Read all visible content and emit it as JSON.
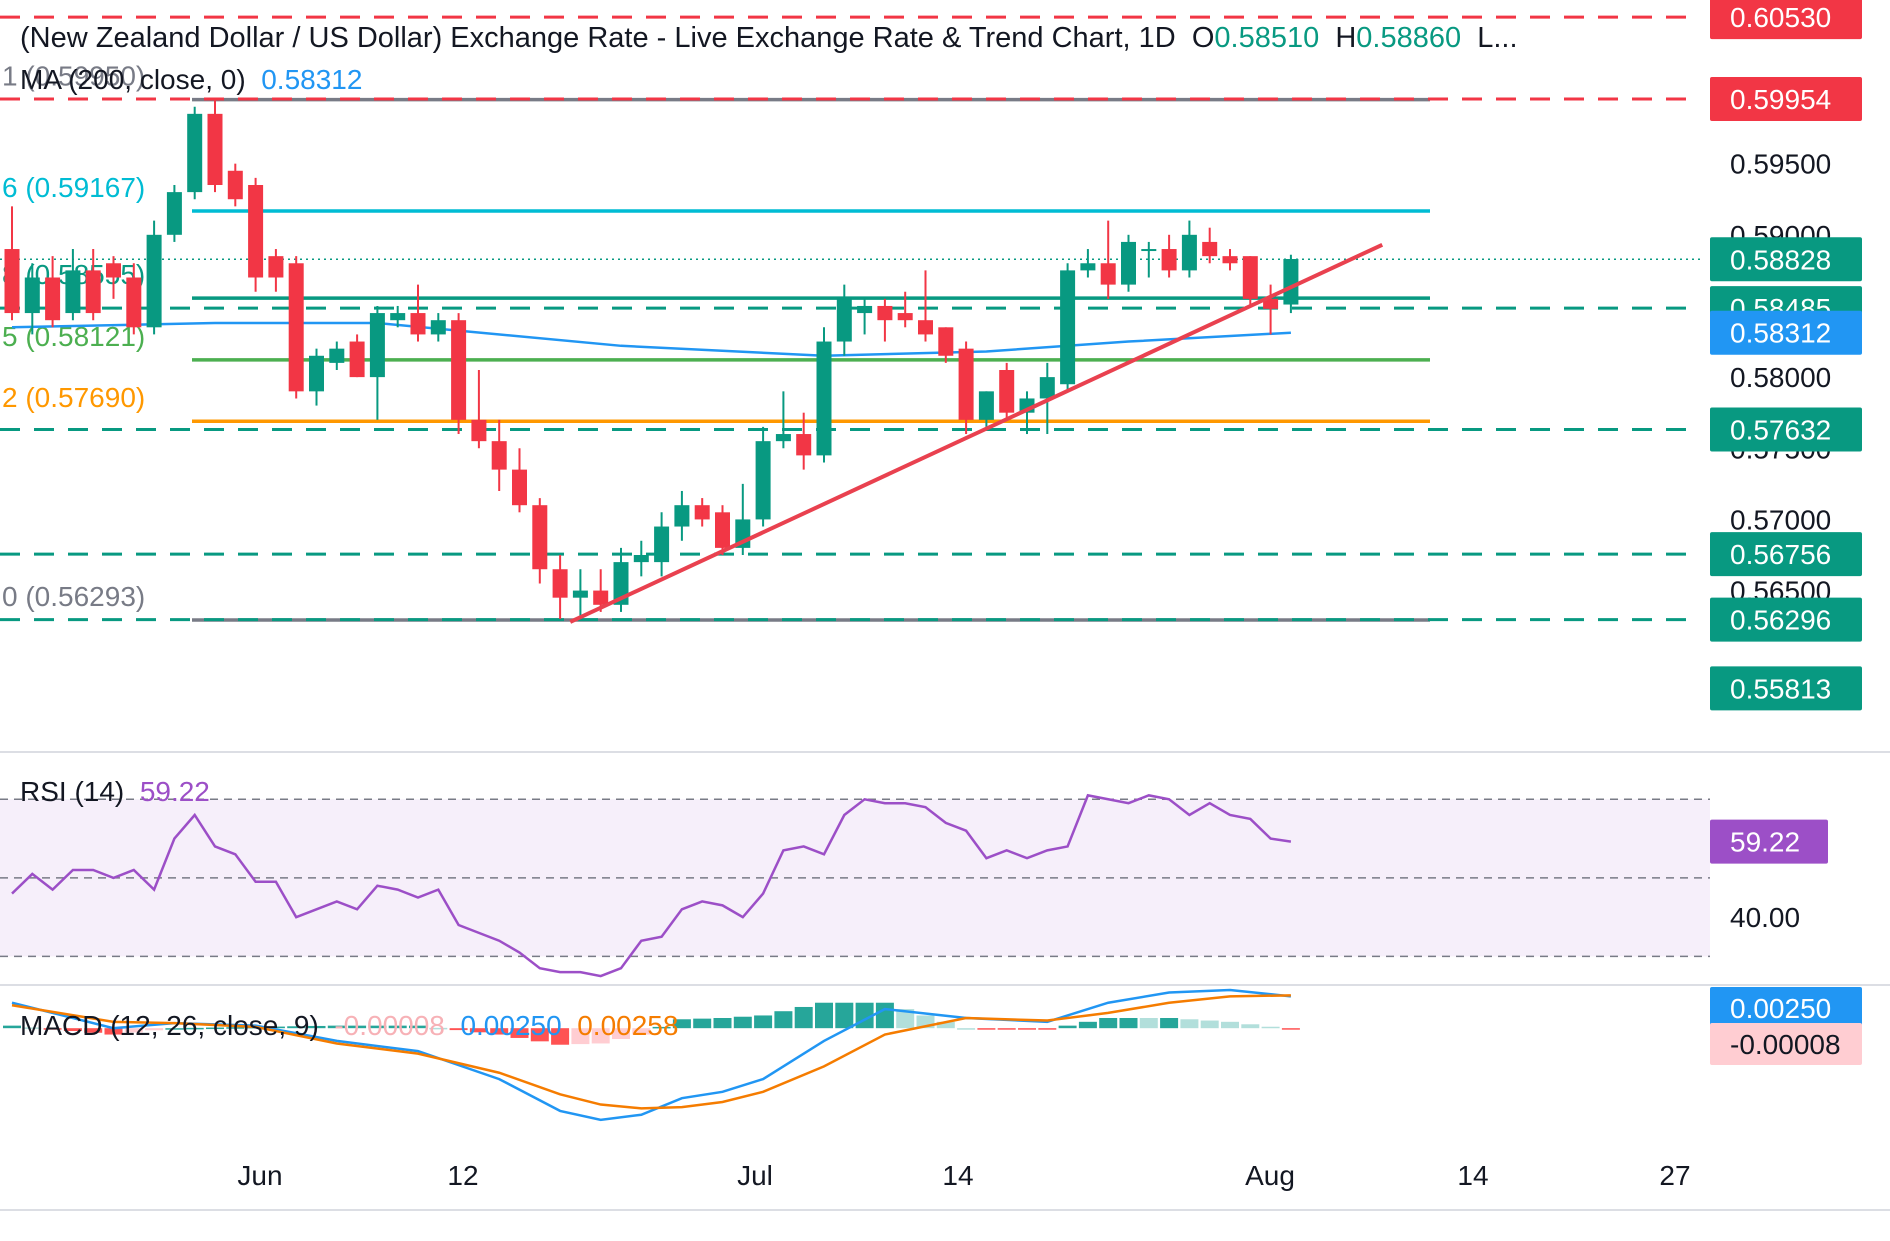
{
  "header": {
    "title": "(New Zealand Dollar / US Dollar) Exchange Rate - Live Exchange Rate & Trend Chart, 1D",
    "open_label": "O",
    "open_value": "0.58510",
    "high_label": "H",
    "high_value": "0.58860",
    "more": "L..."
  },
  "ma_legend": {
    "label": "MA (200, close, 0)",
    "value": "0.58312"
  },
  "rsi_legend": {
    "label": "RSI (14)",
    "value": "59.22"
  },
  "macd_legend": {
    "label": "MACD (12, 26, close, 9)",
    "hist": "-0.00008",
    "macd": "0.00250",
    "signal": "0.00258"
  },
  "colors": {
    "up": "#089981",
    "down": "#f23645",
    "ma": "#2196f3",
    "trend": "#e9414f",
    "fib_top": "#787b86",
    "fib_786": "#00bcd4",
    "fib_618": "#089981",
    "fib_5": "#4caf50",
    "fib_382": "#ff9800",
    "rsi": "#9c4fc7",
    "macd": "#2196f3",
    "signal": "#f57c00"
  },
  "chart_data": {
    "type": "candlestick",
    "price_axis": {
      "ylim": [
        0.5545,
        0.6065
      ],
      "ticks": [
        "0.59500",
        "0.59000",
        "0.58000",
        "0.57500",
        "0.57000",
        "0.56500"
      ]
    },
    "time_axis": {
      "labels": [
        {
          "text": "Jun",
          "index": 8
        },
        {
          "text": "12",
          "index": 15
        },
        {
          "text": "Jul",
          "index": 25
        },
        {
          "text": "14",
          "index": 32
        },
        {
          "text": "Aug",
          "index": 43
        },
        {
          "text": "14",
          "index": 50
        },
        {
          "text": "27",
          "index": 57
        }
      ]
    },
    "candles": [
      {
        "o": 0.589,
        "h": 0.592,
        "l": 0.584,
        "c": 0.5845
      },
      {
        "o": 0.5845,
        "h": 0.588,
        "l": 0.583,
        "c": 0.587
      },
      {
        "o": 0.587,
        "h": 0.5885,
        "l": 0.5835,
        "c": 0.584
      },
      {
        "o": 0.5845,
        "h": 0.589,
        "l": 0.584,
        "c": 0.5875
      },
      {
        "o": 0.5875,
        "h": 0.589,
        "l": 0.584,
        "c": 0.5845
      },
      {
        "o": 0.588,
        "h": 0.5885,
        "l": 0.5855,
        "c": 0.587
      },
      {
        "o": 0.587,
        "h": 0.588,
        "l": 0.583,
        "c": 0.5835
      },
      {
        "o": 0.5835,
        "h": 0.591,
        "l": 0.583,
        "c": 0.59
      },
      {
        "o": 0.59,
        "h": 0.5935,
        "l": 0.5895,
        "c": 0.593
      },
      {
        "o": 0.593,
        "h": 0.599,
        "l": 0.5925,
        "c": 0.5985
      },
      {
        "o": 0.5985,
        "h": 0.5995,
        "l": 0.593,
        "c": 0.5935
      },
      {
        "o": 0.5945,
        "h": 0.595,
        "l": 0.592,
        "c": 0.5925
      },
      {
        "o": 0.5935,
        "h": 0.594,
        "l": 0.586,
        "c": 0.587
      },
      {
        "o": 0.5885,
        "h": 0.589,
        "l": 0.586,
        "c": 0.587
      },
      {
        "o": 0.588,
        "h": 0.5885,
        "l": 0.5785,
        "c": 0.579
      },
      {
        "o": 0.579,
        "h": 0.582,
        "l": 0.578,
        "c": 0.5815
      },
      {
        "o": 0.581,
        "h": 0.5825,
        "l": 0.5805,
        "c": 0.582
      },
      {
        "o": 0.5825,
        "h": 0.583,
        "l": 0.58,
        "c": 0.58
      },
      {
        "o": 0.58,
        "h": 0.585,
        "l": 0.577,
        "c": 0.5845
      },
      {
        "o": 0.584,
        "h": 0.585,
        "l": 0.5835,
        "c": 0.5845
      },
      {
        "o": 0.5845,
        "h": 0.5865,
        "l": 0.5825,
        "c": 0.583
      },
      {
        "o": 0.583,
        "h": 0.5845,
        "l": 0.5825,
        "c": 0.584
      },
      {
        "o": 0.584,
        "h": 0.5845,
        "l": 0.576,
        "c": 0.577
      },
      {
        "o": 0.577,
        "h": 0.5805,
        "l": 0.575,
        "c": 0.5755
      },
      {
        "o": 0.5755,
        "h": 0.577,
        "l": 0.572,
        "c": 0.5735
      },
      {
        "o": 0.5735,
        "h": 0.575,
        "l": 0.5705,
        "c": 0.571
      },
      {
        "o": 0.571,
        "h": 0.5715,
        "l": 0.5655,
        "c": 0.5665
      },
      {
        "o": 0.5665,
        "h": 0.5675,
        "l": 0.563,
        "c": 0.5645
      },
      {
        "o": 0.5645,
        "h": 0.5665,
        "l": 0.563,
        "c": 0.565
      },
      {
        "o": 0.565,
        "h": 0.5665,
        "l": 0.5635,
        "c": 0.564
      },
      {
        "o": 0.564,
        "h": 0.568,
        "l": 0.5635,
        "c": 0.567
      },
      {
        "o": 0.567,
        "h": 0.5685,
        "l": 0.566,
        "c": 0.5675
      },
      {
        "o": 0.567,
        "h": 0.5705,
        "l": 0.566,
        "c": 0.5695
      },
      {
        "o": 0.5695,
        "h": 0.572,
        "l": 0.5685,
        "c": 0.571
      },
      {
        "o": 0.571,
        "h": 0.5715,
        "l": 0.5695,
        "c": 0.57
      },
      {
        "o": 0.5705,
        "h": 0.571,
        "l": 0.5675,
        "c": 0.568
      },
      {
        "o": 0.568,
        "h": 0.5725,
        "l": 0.5675,
        "c": 0.57
      },
      {
        "o": 0.57,
        "h": 0.5765,
        "l": 0.5695,
        "c": 0.5755
      },
      {
        "o": 0.5755,
        "h": 0.579,
        "l": 0.575,
        "c": 0.576
      },
      {
        "o": 0.576,
        "h": 0.5775,
        "l": 0.5735,
        "c": 0.5745
      },
      {
        "o": 0.5745,
        "h": 0.5835,
        "l": 0.574,
        "c": 0.5825
      },
      {
        "o": 0.5825,
        "h": 0.5865,
        "l": 0.5815,
        "c": 0.5855
      },
      {
        "o": 0.5845,
        "h": 0.5855,
        "l": 0.583,
        "c": 0.585
      },
      {
        "o": 0.585,
        "h": 0.5855,
        "l": 0.5825,
        "c": 0.584
      },
      {
        "o": 0.5845,
        "h": 0.586,
        "l": 0.5835,
        "c": 0.584
      },
      {
        "o": 0.584,
        "h": 0.5875,
        "l": 0.5825,
        "c": 0.583
      },
      {
        "o": 0.5835,
        "h": 0.5835,
        "l": 0.581,
        "c": 0.5815
      },
      {
        "o": 0.582,
        "h": 0.5825,
        "l": 0.576,
        "c": 0.577
      },
      {
        "o": 0.577,
        "h": 0.579,
        "l": 0.5765,
        "c": 0.579
      },
      {
        "o": 0.5805,
        "h": 0.581,
        "l": 0.577,
        "c": 0.5775
      },
      {
        "o": 0.5775,
        "h": 0.579,
        "l": 0.576,
        "c": 0.5785
      },
      {
        "o": 0.5785,
        "h": 0.581,
        "l": 0.576,
        "c": 0.58
      },
      {
        "o": 0.5795,
        "h": 0.588,
        "l": 0.579,
        "c": 0.5875
      },
      {
        "o": 0.5875,
        "h": 0.589,
        "l": 0.587,
        "c": 0.588
      },
      {
        "o": 0.588,
        "h": 0.591,
        "l": 0.5855,
        "c": 0.5865
      },
      {
        "o": 0.5865,
        "h": 0.59,
        "l": 0.586,
        "c": 0.5895
      },
      {
        "o": 0.589,
        "h": 0.5895,
        "l": 0.587,
        "c": 0.589
      },
      {
        "o": 0.589,
        "h": 0.59,
        "l": 0.587,
        "c": 0.5875
      },
      {
        "o": 0.5875,
        "h": 0.591,
        "l": 0.587,
        "c": 0.59
      },
      {
        "o": 0.5895,
        "h": 0.5905,
        "l": 0.588,
        "c": 0.5885
      },
      {
        "o": 0.5885,
        "h": 0.589,
        "l": 0.5875,
        "c": 0.588
      },
      {
        "o": 0.5885,
        "h": 0.5885,
        "l": 0.585,
        "c": 0.5855
      },
      {
        "o": 0.5855,
        "h": 0.5865,
        "l": 0.583,
        "c": 0.5848
      },
      {
        "o": 0.5851,
        "h": 0.5886,
        "l": 0.5845,
        "c": 0.5883
      }
    ],
    "ma200": [
      {
        "i": 0,
        "v": 0.5835
      },
      {
        "i": 10,
        "v": 0.5838
      },
      {
        "i": 18,
        "v": 0.5838
      },
      {
        "i": 30,
        "v": 0.5822
      },
      {
        "i": 40,
        "v": 0.5815
      },
      {
        "i": 48,
        "v": 0.5818
      },
      {
        "i": 55,
        "v": 0.5825
      },
      {
        "i": 63,
        "v": 0.58312
      }
    ],
    "fib_levels": [
      {
        "label": "1 (0.59950)",
        "value": 0.5995,
        "color": "#787b86"
      },
      {
        "label": "6 (0.59167)",
        "value": 0.59167,
        "color": "#00bcd4"
      },
      {
        "label": "8 (0.58555)",
        "value": 0.58555,
        "color": "#089981"
      },
      {
        "label": "5 (0.58121)",
        "value": 0.58121,
        "color": "#4caf50"
      },
      {
        "label": "2 (0.57690)",
        "value": 0.5769,
        "color": "#ff9800"
      },
      {
        "label": "0 (0.56293)",
        "value": 0.56293,
        "color": "#787b86"
      }
    ],
    "trendline": {
      "start": {
        "i": 27.5,
        "v": 0.5628
      },
      "end": {
        "i": 67.5,
        "v": 0.5893
      }
    },
    "dashed_levels": [
      {
        "value": 0.6053,
        "color": "#f23645"
      },
      {
        "value": 0.59954,
        "color": "#f23645"
      },
      {
        "value": 0.58485,
        "color": "#089981"
      },
      {
        "value": 0.57632,
        "color": "#089981"
      },
      {
        "value": 0.56756,
        "color": "#089981"
      },
      {
        "value": 0.56296,
        "color": "#089981"
      }
    ],
    "last_price": 0.58828,
    "price_labels": [
      {
        "text": "0.60530",
        "value": 0.6053,
        "color": "#f23645"
      },
      {
        "text": "0.59954",
        "value": 0.59954,
        "color": "#f23645"
      },
      {
        "text": "0.58828",
        "value": 0.58828,
        "color": "#089981"
      },
      {
        "text": "0.58485",
        "value": 0.58485,
        "color": "#089981"
      },
      {
        "text": "0.58312",
        "value": 0.58312,
        "color": "#2196f3"
      },
      {
        "text": "0.57632",
        "value": 0.57632,
        "color": "#089981"
      },
      {
        "text": "0.56756",
        "value": 0.56756,
        "color": "#089981"
      },
      {
        "text": "0.56296",
        "value": 0.56296,
        "color": "#089981"
      },
      {
        "text": "0.55813",
        "value": 0.55813,
        "color": "#089981"
      }
    ],
    "rsi": {
      "ylim": [
        24,
        80
      ],
      "upper": 70,
      "lower": 30,
      "tick": "40.00",
      "tick_value": 40,
      "current_label": "59.22",
      "points": [
        {
          "i": 0,
          "v": 46
        },
        {
          "i": 1,
          "v": 51
        },
        {
          "i": 2,
          "v": 47
        },
        {
          "i": 3,
          "v": 52
        },
        {
          "i": 4,
          "v": 52
        },
        {
          "i": 5,
          "v": 50
        },
        {
          "i": 6,
          "v": 52
        },
        {
          "i": 7,
          "v": 47
        },
        {
          "i": 8,
          "v": 60
        },
        {
          "i": 9,
          "v": 66
        },
        {
          "i": 10,
          "v": 58
        },
        {
          "i": 11,
          "v": 56
        },
        {
          "i": 12,
          "v": 49
        },
        {
          "i": 13,
          "v": 49
        },
        {
          "i": 14,
          "v": 40
        },
        {
          "i": 15,
          "v": 42
        },
        {
          "i": 16,
          "v": 44
        },
        {
          "i": 17,
          "v": 42
        },
        {
          "i": 18,
          "v": 48
        },
        {
          "i": 19,
          "v": 47
        },
        {
          "i": 20,
          "v": 45
        },
        {
          "i": 21,
          "v": 47
        },
        {
          "i": 22,
          "v": 38
        },
        {
          "i": 23,
          "v": 36
        },
        {
          "i": 24,
          "v": 34
        },
        {
          "i": 25,
          "v": 31
        },
        {
          "i": 26,
          "v": 27
        },
        {
          "i": 27,
          "v": 26
        },
        {
          "i": 28,
          "v": 26
        },
        {
          "i": 29,
          "v": 25
        },
        {
          "i": 30,
          "v": 27
        },
        {
          "i": 31,
          "v": 34
        },
        {
          "i": 32,
          "v": 35
        },
        {
          "i": 33,
          "v": 42
        },
        {
          "i": 34,
          "v": 44
        },
        {
          "i": 35,
          "v": 43
        },
        {
          "i": 36,
          "v": 40
        },
        {
          "i": 37,
          "v": 46
        },
        {
          "i": 38,
          "v": 57
        },
        {
          "i": 39,
          "v": 58
        },
        {
          "i": 40,
          "v": 56
        },
        {
          "i": 41,
          "v": 66
        },
        {
          "i": 42,
          "v": 70
        },
        {
          "i": 43,
          "v": 69
        },
        {
          "i": 44,
          "v": 69
        },
        {
          "i": 45,
          "v": 68
        },
        {
          "i": 46,
          "v": 64
        },
        {
          "i": 47,
          "v": 62
        },
        {
          "i": 48,
          "v": 55
        },
        {
          "i": 49,
          "v": 57
        },
        {
          "i": 50,
          "v": 55
        },
        {
          "i": 51,
          "v": 57
        },
        {
          "i": 52,
          "v": 58
        },
        {
          "i": 53,
          "v": 71
        },
        {
          "i": 54,
          "v": 70
        },
        {
          "i": 55,
          "v": 69
        },
        {
          "i": 56,
          "v": 71
        },
        {
          "i": 57,
          "v": 70
        },
        {
          "i": 58,
          "v": 66
        },
        {
          "i": 59,
          "v": 69
        },
        {
          "i": 60,
          "v": 66
        },
        {
          "i": 61,
          "v": 65
        },
        {
          "i": 62,
          "v": 60
        },
        {
          "i": 63,
          "v": 59.22
        }
      ]
    },
    "macd": {
      "ylim": [
        -0.008,
        0.003
      ],
      "macd_label": "0.00250",
      "hist_label": "-0.00008",
      "macd_line": [
        {
          "i": 0,
          "v": 0.002
        },
        {
          "i": 5,
          "v": 0.0
        },
        {
          "i": 8,
          "v": 0.0004
        },
        {
          "i": 12,
          "v": 0.0002
        },
        {
          "i": 16,
          "v": -0.001
        },
        {
          "i": 20,
          "v": -0.0018
        },
        {
          "i": 24,
          "v": -0.004
        },
        {
          "i": 27,
          "v": -0.0065
        },
        {
          "i": 29,
          "v": -0.0072
        },
        {
          "i": 31,
          "v": -0.0068
        },
        {
          "i": 33,
          "v": -0.0055
        },
        {
          "i": 35,
          "v": -0.005
        },
        {
          "i": 37,
          "v": -0.004
        },
        {
          "i": 40,
          "v": -0.001
        },
        {
          "i": 43,
          "v": 0.0015
        },
        {
          "i": 47,
          "v": 0.0008
        },
        {
          "i": 51,
          "v": 0.0005
        },
        {
          "i": 54,
          "v": 0.002
        },
        {
          "i": 57,
          "v": 0.0028
        },
        {
          "i": 60,
          "v": 0.003
        },
        {
          "i": 63,
          "v": 0.0025
        }
      ],
      "signal_line": [
        {
          "i": 0,
          "v": 0.0018
        },
        {
          "i": 5,
          "v": 0.0005
        },
        {
          "i": 8,
          "v": 0.0004
        },
        {
          "i": 12,
          "v": 0.0001
        },
        {
          "i": 16,
          "v": -0.0012
        },
        {
          "i": 20,
          "v": -0.002
        },
        {
          "i": 24,
          "v": -0.0035
        },
        {
          "i": 27,
          "v": -0.0052
        },
        {
          "i": 29,
          "v": -0.006
        },
        {
          "i": 31,
          "v": -0.0063
        },
        {
          "i": 33,
          "v": -0.0062
        },
        {
          "i": 35,
          "v": -0.0058
        },
        {
          "i": 37,
          "v": -0.005
        },
        {
          "i": 40,
          "v": -0.003
        },
        {
          "i": 43,
          "v": -0.0005
        },
        {
          "i": 47,
          "v": 0.0008
        },
        {
          "i": 51,
          "v": 0.0006
        },
        {
          "i": 54,
          "v": 0.0012
        },
        {
          "i": 57,
          "v": 0.002
        },
        {
          "i": 60,
          "v": 0.0025
        },
        {
          "i": 63,
          "v": 0.00258
        }
      ]
    }
  }
}
